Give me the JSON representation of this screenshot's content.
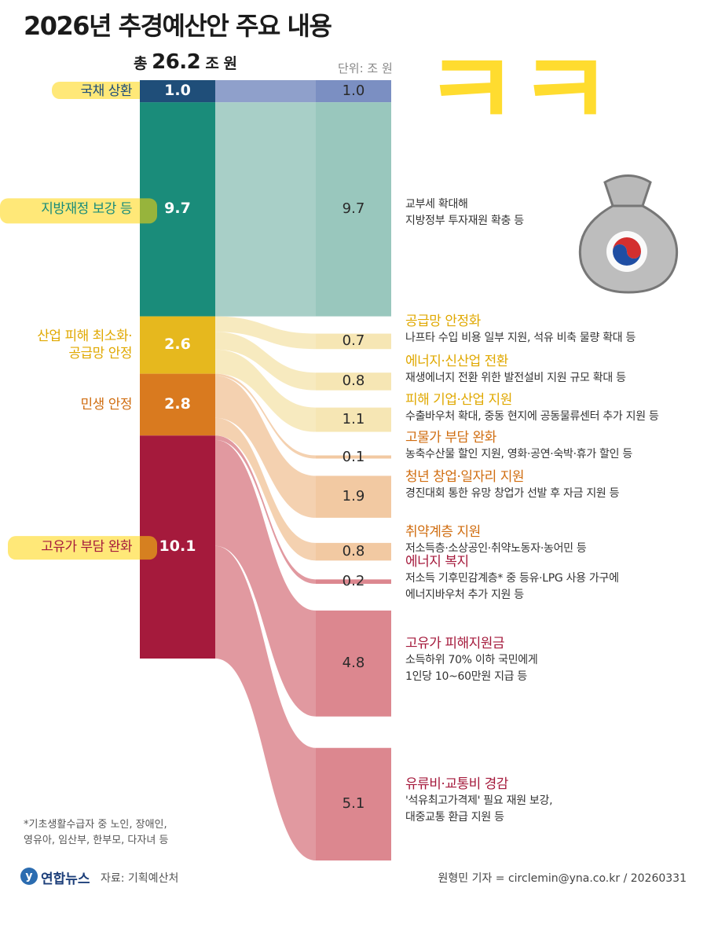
{
  "title": "2026년 추경예산안 주요 내용",
  "total_prefix": "총",
  "total_value": "26.2",
  "total_unit": "조 원",
  "unit_label": "단위: 조 원",
  "chart_data": {
    "type": "sankey",
    "total": 26.2,
    "sources": [
      {
        "name": "국채 상환",
        "value": 1.0,
        "color": "#1f4e79"
      },
      {
        "name": "지방재정 보강 등",
        "value": 9.7,
        "color": "#1a8c7a"
      },
      {
        "name": "산업 피해 최소화·\n공급망 안정",
        "value": 2.6,
        "color": "#e6b81e"
      },
      {
        "name": "민생 안정",
        "value": 2.8,
        "color": "#d97a1f"
      },
      {
        "name": "고유가 부담 완화",
        "value": 10.1,
        "color": "#a51a3c"
      }
    ],
    "targets": [
      {
        "source": 0,
        "value": 1.0,
        "title": "",
        "desc": [],
        "color": "#7b8fc2"
      },
      {
        "source": 1,
        "value": 9.7,
        "title": "",
        "desc": [
          "교부세 확대해",
          "지방정부 투자재원 확충 등"
        ],
        "color": "#99c7bd"
      },
      {
        "source": 2,
        "value": 0.7,
        "title": "공급망 안정화",
        "desc": [
          "나프타 수입 비용 일부 지원, 석유 비축 물량 확대 등"
        ],
        "color": "#f6e6b4"
      },
      {
        "source": 2,
        "value": 0.8,
        "title": "에너지·신산업 전환",
        "desc": [
          "재생에너지 전환 위한 발전설비 지원 규모 확대 등"
        ],
        "color": "#f6e6b4"
      },
      {
        "source": 2,
        "value": 1.1,
        "title": "피해 기업·산업 지원",
        "desc": [
          "수출바우처 확대, 중동 현지에 공동물류센터 추가 지원 등"
        ],
        "color": "#f6e6b4"
      },
      {
        "source": 3,
        "value": 0.1,
        "title": "고물가 부담 완화",
        "desc": [
          "농축수산물 할인 지원, 영화·공연·숙박·휴가 할인 등"
        ],
        "color": "#f2c9a2"
      },
      {
        "source": 3,
        "value": 1.9,
        "title": "청년 창업·일자리 지원",
        "desc": [
          "경진대회 통한 유망 창업가 선발 후 자금 지원 등"
        ],
        "color": "#f2c9a2"
      },
      {
        "source": 3,
        "value": 0.8,
        "title": "취약계층 지원",
        "desc": [
          "저소득층·소상공인·취약노동자·농어민 등"
        ],
        "color": "#f2c9a2"
      },
      {
        "source": 4,
        "value": 0.2,
        "title": "에너지 복지",
        "desc": [
          "저소득 기후민감계층* 중 등유·LPG 사용 가구에",
          "에너지바우처 추가 지원 등"
        ],
        "color": "#dc878f"
      },
      {
        "source": 4,
        "value": 4.8,
        "title": "고유가 피해지원금",
        "desc": [
          "소득하위 70% 이하 국민에게",
          "1인당 10~60만원 지급 등"
        ],
        "color": "#dc878f"
      },
      {
        "source": 4,
        "value": 5.1,
        "title": "유류비·교통비 경감",
        "desc": [
          "'석유최고가격제' 필요 재원 보강,",
          "대중교통 환급 지원 등"
        ],
        "color": "#dc878f"
      }
    ],
    "title_colors": [
      "#1f4e79",
      "#1a8c7a",
      "#e0a800",
      "#d06d10",
      "#a51a3c"
    ]
  },
  "annotation": "ㅋㅋ",
  "footnote": [
    "*기초생활수급자 중 노인, 장애인,",
    "영유아, 임산부, 한부모, 다자녀 등"
  ],
  "brand": "연합뉴스",
  "source": "자료: 기획예산처",
  "credit": "원형민 기자 = circlemin@yna.co.kr / 20260331"
}
